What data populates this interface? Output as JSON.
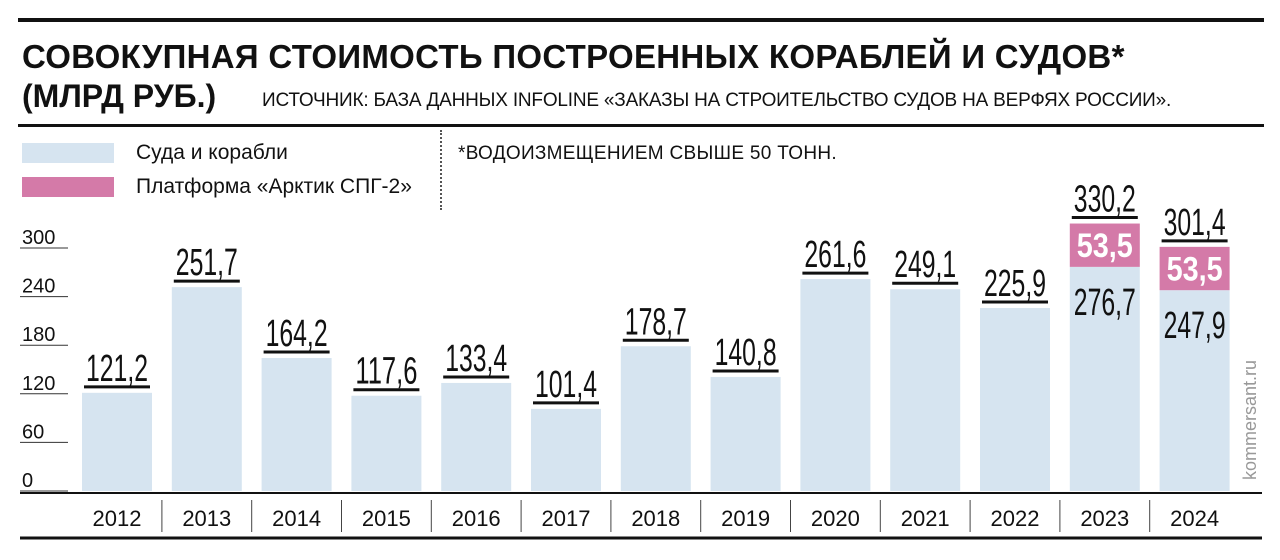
{
  "title": "СОВОКУПНАЯ СТОИМОСТЬ ПОСТРОЕННЫХ КОРАБЛЕЙ И СУДОВ*",
  "unit": "(МЛРД РУБ.)",
  "source": "ИСТОЧНИК: БАЗА ДАННЫХ INFOLINE «ЗАКАЗЫ НА СТРОИТЕЛЬСТВО СУДОВ НА ВЕРФЯХ РОССИИ».",
  "footnote": "*ВОДОИЗМЕЩЕНИЕМ СВЫШЕ 50 ТОНН.",
  "watermark": "kommersant.ru",
  "legend": [
    {
      "label": "Суда и корабли",
      "color": "#d6e4f0"
    },
    {
      "label": "Платформа «Арктик СПГ-2»",
      "color": "#d47aa8"
    }
  ],
  "chart_data": {
    "type": "bar",
    "stacked": true,
    "categories": [
      "2012",
      "2013",
      "2014",
      "2015",
      "2016",
      "2017",
      "2018",
      "2019",
      "2020",
      "2021",
      "2022",
      "2023",
      "2024"
    ],
    "series": [
      {
        "name": "Суда и корабли",
        "color": "#d6e4f0",
        "values": [
          121.2,
          251.7,
          164.2,
          117.6,
          133.4,
          101.4,
          178.7,
          140.8,
          261.6,
          249.1,
          225.9,
          276.7,
          247.9
        ]
      },
      {
        "name": "Платформа «Арктик СПГ-2»",
        "color": "#d47aa8",
        "values": [
          0,
          0,
          0,
          0,
          0,
          0,
          0,
          0,
          0,
          0,
          0,
          53.5,
          53.5
        ]
      }
    ],
    "totals": [
      "121,2",
      "251,7",
      "164,2",
      "117,6",
      "133,4",
      "101,4",
      "178,7",
      "140,8",
      "261,6",
      "249,1",
      "225,9",
      "330,2",
      "301,4"
    ],
    "base_labels": [
      "",
      "",
      "",
      "",
      "",
      "",
      "",
      "",
      "",
      "",
      "",
      "276,7",
      "247,9"
    ],
    "top_labels": [
      "",
      "",
      "",
      "",
      "",
      "",
      "",
      "",
      "",
      "",
      "",
      "53,5",
      "53,5"
    ],
    "yticks": [
      0,
      60,
      120,
      180,
      240,
      300
    ],
    "ylim": [
      0,
      330
    ],
    "grid": false,
    "legend_position": "top-left"
  }
}
